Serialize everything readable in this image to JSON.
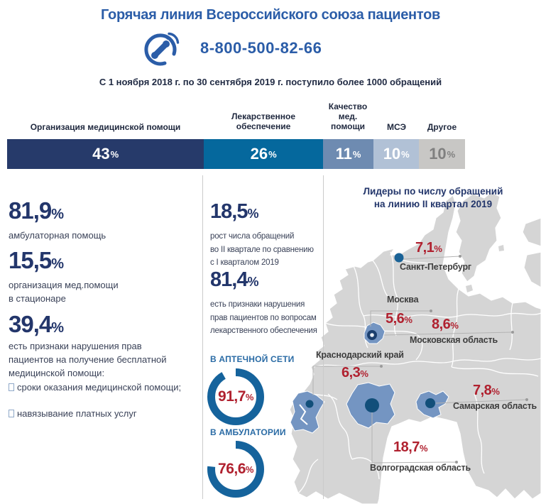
{
  "header": {
    "title": "Горячая линия Всероссийского союза пациентов",
    "phone": "8-800-500-82-66",
    "subtitle": "С 1 ноября 2018 г. по 30 сентября 2019 г. поступило более 1000 обращений"
  },
  "colors": {
    "accent_blue": "#2b5da8",
    "navy": "#23366b",
    "red": "#b0212f",
    "map_gray": "#d5d5d5",
    "map_region_blue": "#7495c2",
    "dot_navy": "#124f7a",
    "donut_ring": "#15639c"
  },
  "bar_header_labels": [
    "Организация медицинской помощи",
    "Лекарственное\nобеспечение",
    "Качество\nмед.\nпомощи",
    "МСЭ",
    "Другое"
  ],
  "chart_data": [
    {
      "type": "bar",
      "subtype": "horizontal-stacked",
      "title": "",
      "categories": [
        "Организация медицинской помощи",
        "Лекарственное обеспечение",
        "Качество мед. помощи",
        "МСЭ",
        "Другое"
      ],
      "values": [
        43,
        26,
        11,
        10,
        10
      ],
      "unit": "%",
      "colors": [
        "#263a6a",
        "#05689d",
        "#6e8bb1",
        "#b1c1d6",
        "#c8c7c5"
      ],
      "xlim": [
        0,
        100
      ],
      "grid": false,
      "legend": "none"
    },
    {
      "type": "pie",
      "subtype": "donut-gauges",
      "title": "",
      "series": [
        {
          "name": "В АПТЕЧНОЙ СЕТИ",
          "value": 91.7
        },
        {
          "name": "В АМБУЛАТОРИИ",
          "value": 76.6
        }
      ],
      "unit": "%"
    },
    {
      "type": "heatmap",
      "subtype": "map-callouts",
      "title": "Лидеры по числу обращений на линию II квартал 2019",
      "points": [
        {
          "name": "Санкт-Петербург",
          "value": 7.1
        },
        {
          "name": "Москва",
          "value": 5.6
        },
        {
          "name": "Московская область",
          "value": 8.6
        },
        {
          "name": "Краснодарский край",
          "value": 6.3
        },
        {
          "name": "Самарская область",
          "value": 7.8
        },
        {
          "name": "Волгоградская область",
          "value": 18.7
        }
      ],
      "unit": "%"
    }
  ],
  "left_column": {
    "stats": [
      {
        "value": "81,9",
        "unit": "%",
        "label": "амбулаторная помощь"
      },
      {
        "value": "15,5",
        "unit": "%",
        "label": "организация мед.помощи\nв стационаре"
      },
      {
        "value": "39,4",
        "unit": "%",
        "label": "есть признаки нарушения прав\nпациентов на получение бесплатной\nмедицинской помощи:",
        "bullets": [
          "сроки оказания медицинской помощи;",
          "навязывание платных услуг"
        ]
      }
    ]
  },
  "middle_column": {
    "stats": [
      {
        "value": "18,5",
        "unit": "%",
        "label": "рост числа обращений\nво II квартале по сравнению\nс I кварталом 2019"
      },
      {
        "value": "81,4",
        "unit": "%",
        "label": "есть признаки нарушения\nправ пациентов по вопросам\nлекарственного обеспечения"
      }
    ],
    "donuts": [
      {
        "label": "В АПТЕЧНОЙ СЕТИ",
        "value": "91,7",
        "unit": "%",
        "pct": 91.7
      },
      {
        "label": "В АМБУЛАТОРИИ",
        "value": "76,6",
        "unit": "%",
        "pct": 76.6
      }
    ]
  },
  "map": {
    "title_line1": "Лидеры по числу обращений",
    "title_line2": "на линию II квартал 2019",
    "regions": [
      {
        "name": "Санкт-Петербург",
        "value": "7,1",
        "unit": "%"
      },
      {
        "name": "Москва",
        "value": "5,6",
        "unit": "%"
      },
      {
        "name": "Московская область",
        "value": "8,6",
        "unit": "%"
      },
      {
        "name": "Краснодарский край",
        "value": "6,3",
        "unit": "%"
      },
      {
        "name": "Самарская область",
        "value": "7,8",
        "unit": "%"
      },
      {
        "name": "Волгоградская область",
        "value": "18,7",
        "unit": "%"
      }
    ]
  }
}
